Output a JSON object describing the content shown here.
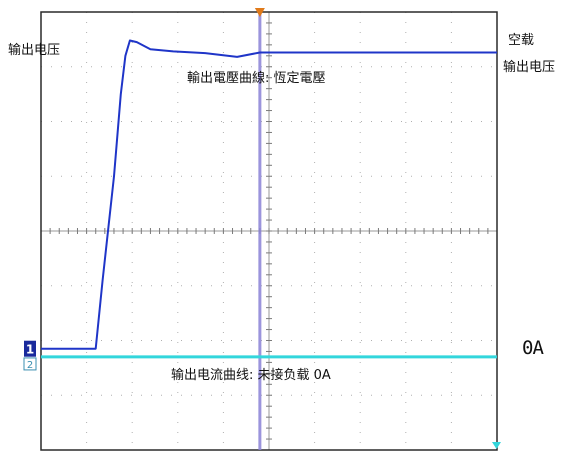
{
  "labels": {
    "left_voltage": "输出电压",
    "right_noload": "空载",
    "right_voltage": "输出电压",
    "voltage_curve": "輸出電壓曲線: 恆定電壓",
    "current_curve": "输出电流曲线: 未接负载 0A",
    "current_value": "0A"
  },
  "markers": {
    "ch1": "1",
    "ch2": "2"
  },
  "colors": {
    "background": "#ffffff",
    "grid_border": "#2a2a2a",
    "grid_dots": "#b0b0b0",
    "voltage_trace": "#1f35c8",
    "current_trace": "#33d6dc",
    "cursor": "#8a82d6",
    "trigger_marker": "#e07a1a",
    "ch1_marker": "#1a2a9c",
    "ch2_marker": "#3a8fb0"
  },
  "chart_data": {
    "type": "line",
    "title": "",
    "xlabel": "",
    "ylabel": "",
    "grid": true,
    "grid_divisions": {
      "x": 10,
      "y": 8
    },
    "xlim": [
      0,
      10
    ],
    "ylim": [
      -4,
      4
    ],
    "cursor_x": 4.8,
    "series": [
      {
        "name": "输出电压",
        "color": "#1f35c8",
        "x": [
          0,
          1.2,
          1.35,
          1.6,
          1.75,
          1.85,
          1.95,
          2.1,
          2.4,
          2.9,
          3.6,
          4.3,
          4.8,
          6.0,
          7.5,
          9.0,
          10.0
        ],
        "y": [
          -2.15,
          -2.15,
          -0.9,
          1.0,
          2.5,
          3.2,
          3.48,
          3.45,
          3.32,
          3.28,
          3.25,
          3.18,
          3.26,
          3.26,
          3.26,
          3.26,
          3.26
        ]
      },
      {
        "name": "输出电流",
        "color": "#33d6dc",
        "x": [
          0,
          10
        ],
        "y": [
          -2.3,
          -2.3
        ]
      }
    ]
  }
}
